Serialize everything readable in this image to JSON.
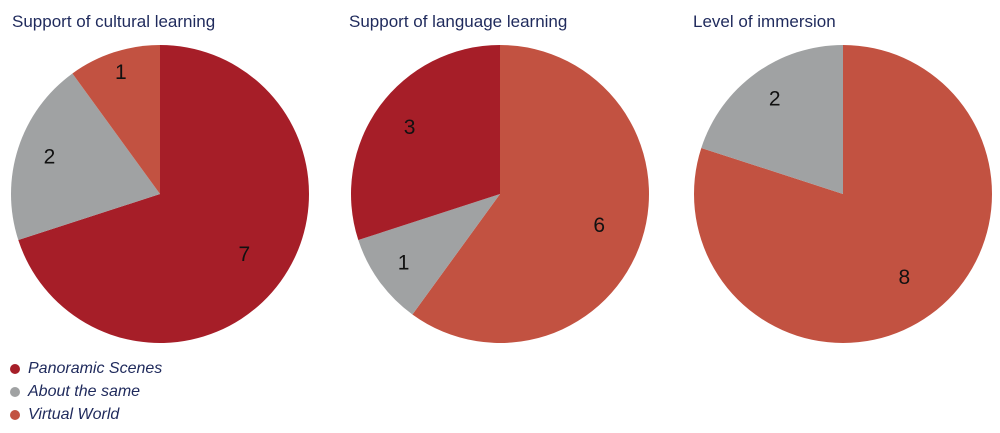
{
  "colors": {
    "Panoramic Scenes": "#a61e28",
    "About the same": "#a0a2a3",
    "Virtual World": "#c25241"
  },
  "legend": {
    "items": [
      "Panoramic Scenes",
      "About the same",
      "Virtual World"
    ]
  },
  "chart_data": [
    {
      "type": "pie",
      "title": "Support of cultural learning",
      "categories": [
        "Panoramic Scenes",
        "About the same",
        "Virtual World"
      ],
      "values": [
        7,
        2,
        1
      ]
    },
    {
      "type": "pie",
      "title": "Support of language learning",
      "categories": [
        "Virtual World",
        "About the same",
        "Panoramic Scenes"
      ],
      "values": [
        6,
        1,
        3
      ]
    },
    {
      "type": "pie",
      "title": "Level of immersion",
      "categories": [
        "Virtual World",
        "About the same"
      ],
      "values": [
        8,
        2
      ]
    }
  ]
}
